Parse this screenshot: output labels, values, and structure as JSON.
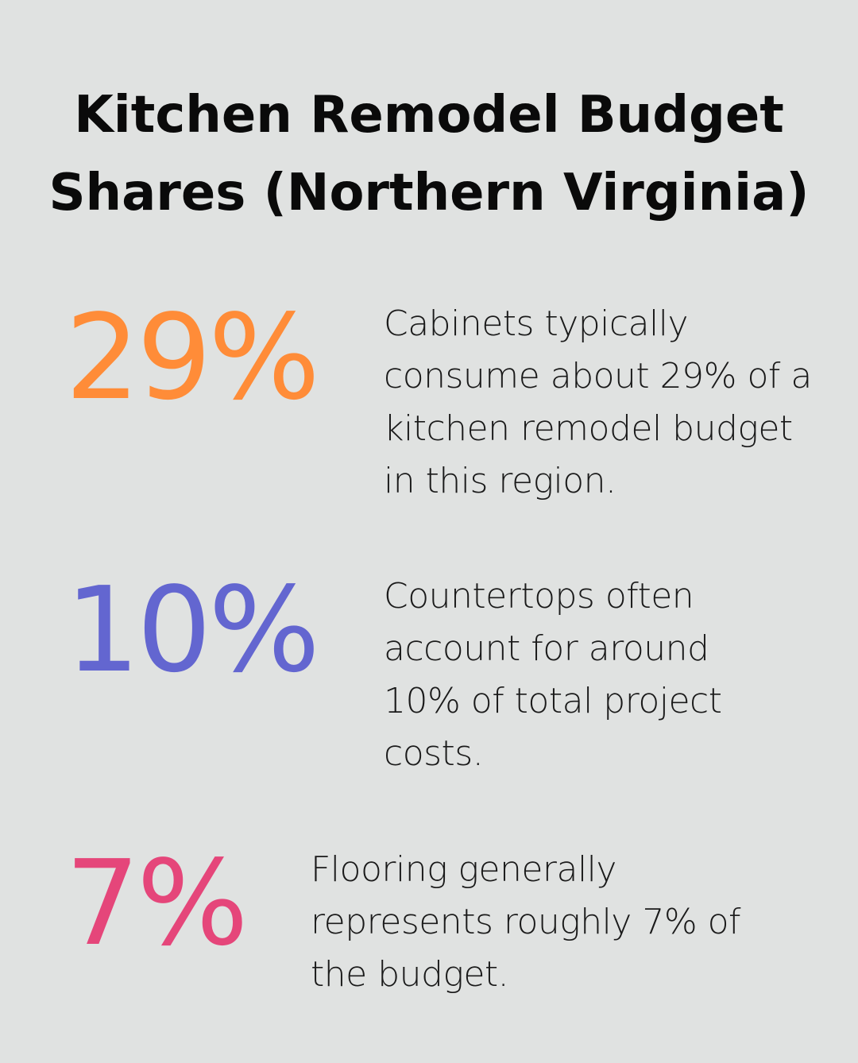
{
  "title": "Kitchen Remodel Budget Shares (Northern Virginia)",
  "stats": [
    {
      "value": "29%",
      "color": "#ff8c38",
      "text": "Cabinets typically consume about 29% of a kitchen remodel budget in this region."
    },
    {
      "value": "10%",
      "color": "#6366d0",
      "text": "Countertops often account for around 10% of total project costs."
    },
    {
      "value": "7%",
      "color": "#e5467a",
      "text": "Flooring generally represents roughly 7% of the budget."
    }
  ]
}
